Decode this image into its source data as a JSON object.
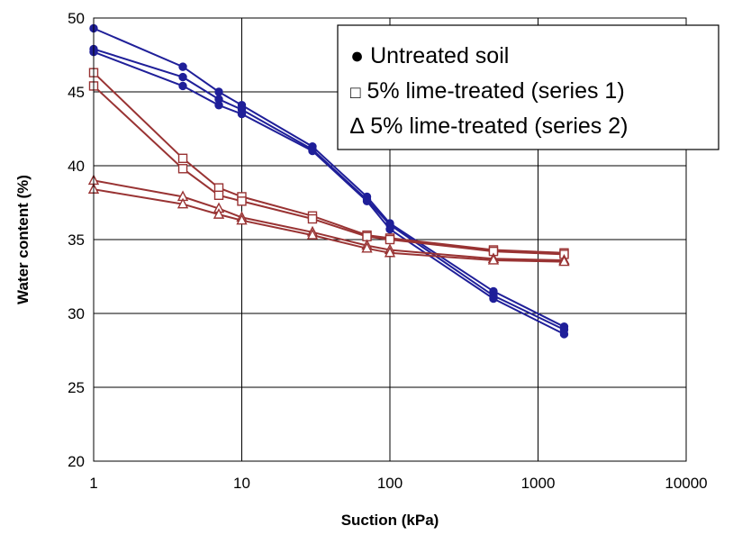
{
  "chart_data": {
    "type": "line",
    "xlabel": "Suction (kPa)",
    "ylabel": "Water content (%)",
    "xscale": "log",
    "xlim": [
      1,
      10000
    ],
    "ylim": [
      20,
      50
    ],
    "xticks": [
      "1",
      "10",
      "100",
      "1000",
      "10000"
    ],
    "yticks": [
      "20",
      "25",
      "30",
      "35",
      "40",
      "45",
      "50"
    ],
    "grid": true,
    "legend_position": "top-right",
    "legend": [
      {
        "symbol": "●",
        "label": "Untreated soil"
      },
      {
        "symbol": "□",
        "label": "5% lime-treated (series 1)"
      },
      {
        "symbol": "∆",
        "label": "5% lime-treated (series 2)"
      }
    ],
    "colors": {
      "untreated": "#1f1f99",
      "lime": "#993333"
    },
    "series": [
      {
        "group": "untreated",
        "marker": "circle",
        "color": "#1f1f99",
        "x": [
          1,
          4,
          7,
          10,
          30,
          70,
          100,
          500,
          1500
        ],
        "y": [
          49.3,
          46.7,
          45.0,
          44.1,
          41.3,
          37.9,
          36.1,
          31.5,
          29.1
        ]
      },
      {
        "group": "untreated",
        "marker": "circle",
        "color": "#1f1f99",
        "x": [
          1,
          4,
          7,
          10,
          30,
          70,
          100,
          500,
          1500
        ],
        "y": [
          47.9,
          46.0,
          44.5,
          43.8,
          41.1,
          37.7,
          36.0,
          31.2,
          28.9
        ]
      },
      {
        "group": "untreated",
        "marker": "circle",
        "color": "#1f1f99",
        "x": [
          1,
          4,
          7,
          10,
          30,
          70,
          100,
          500,
          1500
        ],
        "y": [
          47.7,
          45.4,
          44.1,
          43.5,
          41.0,
          37.6,
          35.7,
          31.0,
          28.6
        ]
      },
      {
        "group": "lime",
        "marker": "square",
        "color": "#993333",
        "x": [
          1,
          4,
          7,
          10,
          30,
          70,
          100,
          500,
          1500
        ],
        "y": [
          46.3,
          40.5,
          38.5,
          37.9,
          36.6,
          35.3,
          35.1,
          34.3,
          34.1
        ]
      },
      {
        "group": "lime",
        "marker": "square",
        "color": "#993333",
        "x": [
          1,
          4,
          7,
          10,
          30,
          70,
          100,
          500,
          1500
        ],
        "y": [
          45.4,
          39.8,
          38.0,
          37.6,
          36.4,
          35.2,
          35.0,
          34.2,
          34.0
        ]
      },
      {
        "group": "lime",
        "marker": "triangle",
        "color": "#993333",
        "x": [
          1,
          4,
          7,
          10,
          30,
          70,
          100,
          500,
          1500
        ],
        "y": [
          39.0,
          37.9,
          37.1,
          36.5,
          35.5,
          34.6,
          34.3,
          33.7,
          33.6
        ]
      },
      {
        "group": "lime",
        "marker": "triangle",
        "color": "#993333",
        "x": [
          1,
          4,
          7,
          10,
          30,
          70,
          100,
          500,
          1500
        ],
        "y": [
          38.4,
          37.4,
          36.7,
          36.3,
          35.3,
          34.4,
          34.1,
          33.6,
          33.5
        ]
      }
    ]
  }
}
